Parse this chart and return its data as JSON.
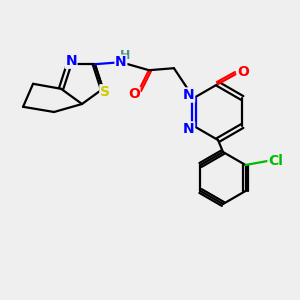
{
  "background_color": "#efefef",
  "atom_colors": {
    "N": "#0000ff",
    "O": "#ff0000",
    "S": "#cccc00",
    "Cl": "#00bb00",
    "C": "#000000",
    "H": "#4a9090"
  },
  "font_size": 10,
  "fig_size": [
    3.0,
    3.0
  ],
  "dpi": 100
}
